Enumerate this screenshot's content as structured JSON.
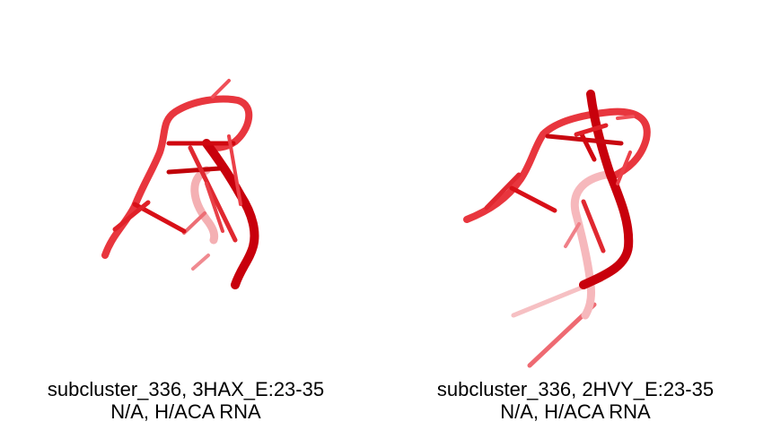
{
  "panels": [
    {
      "caption_line1": "subcluster_336, 3HAX_E:23-35",
      "caption_line2": "N/A, H/ACA RNA",
      "color": "#e8141c"
    },
    {
      "caption_line1": "subcluster_336, 2HVY_E:23-35",
      "caption_line2": "N/A, H/ACA RNA",
      "color": "#e8141c"
    }
  ]
}
